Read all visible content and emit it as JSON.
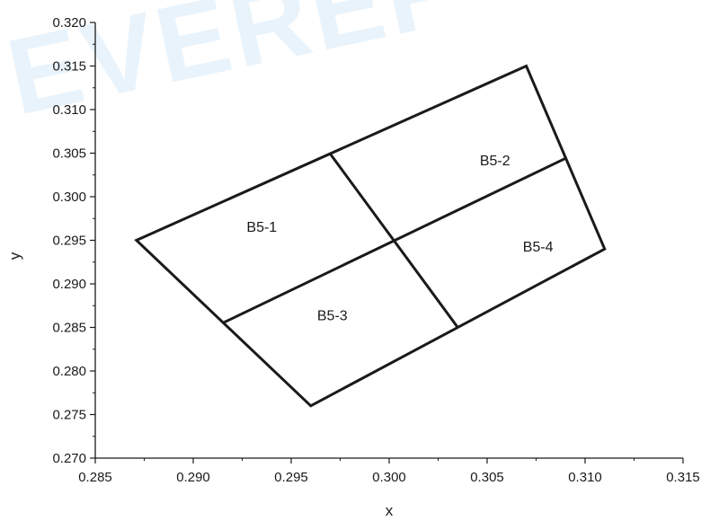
{
  "watermark": {
    "text": "EVEREF"
  },
  "chart_data": {
    "type": "scatter",
    "title": "",
    "xlabel": "x",
    "ylabel": "y",
    "xlim": [
      0.285,
      0.315
    ],
    "ylim": [
      0.27,
      0.32
    ],
    "xticks": [
      "0.285",
      "0.290",
      "0.295",
      "0.300",
      "0.305",
      "0.310",
      "0.315"
    ],
    "yticks": [
      "0.270",
      "0.275",
      "0.280",
      "0.285",
      "0.290",
      "0.295",
      "0.300",
      "0.305",
      "0.310",
      "0.315",
      "0.320"
    ],
    "outline": [
      [
        0.2871,
        0.295
      ],
      [
        0.307,
        0.315
      ],
      [
        0.311,
        0.294
      ],
      [
        0.296,
        0.276
      ]
    ],
    "dividers": [
      {
        "from": [
          0.297,
          0.3049
        ],
        "to": [
          0.3035,
          0.285
        ]
      },
      {
        "from": [
          0.2915,
          0.2855
        ],
        "to": [
          0.309,
          0.3044
        ]
      }
    ],
    "regions": [
      {
        "label": "B5-1",
        "x": 0.2935,
        "y": 0.296
      },
      {
        "label": "B5-2",
        "x": 0.3054,
        "y": 0.3036
      },
      {
        "label": "B5-3",
        "x": 0.2971,
        "y": 0.2858
      },
      {
        "label": "B5-4",
        "x": 0.3076,
        "y": 0.2937
      }
    ],
    "grid": false,
    "line_color": "#1a1a1a"
  }
}
